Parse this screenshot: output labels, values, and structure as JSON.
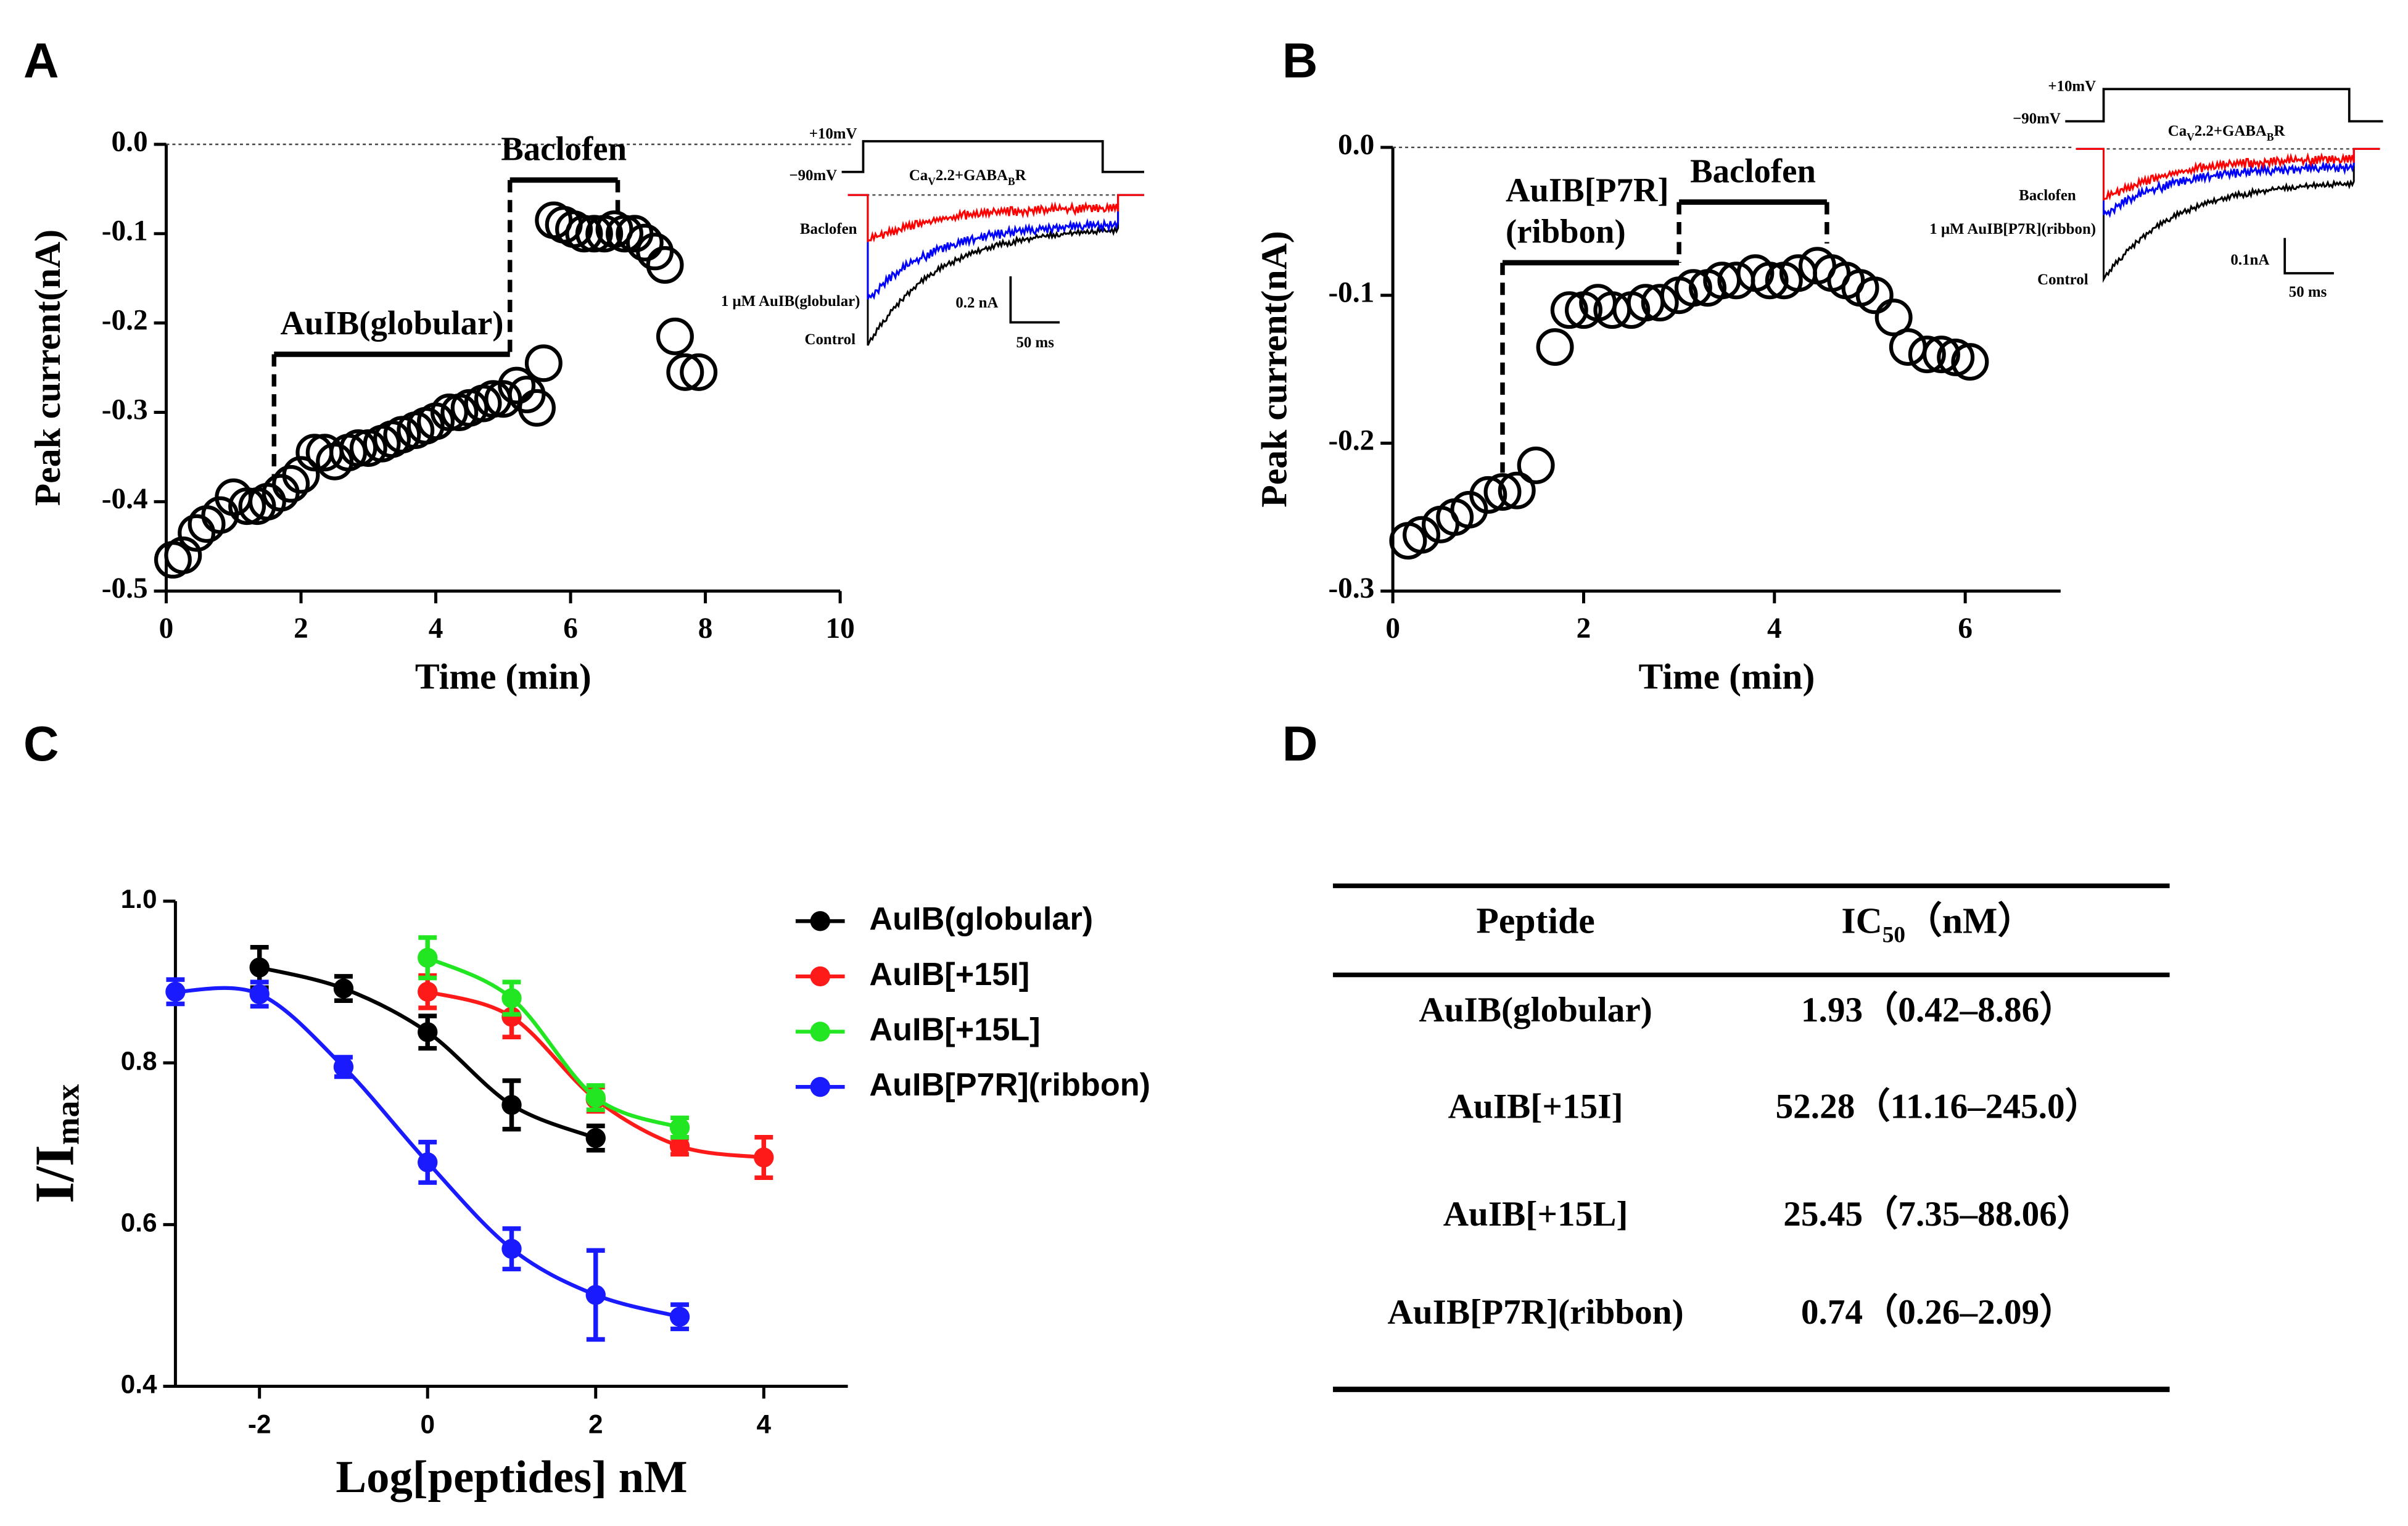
{
  "chart_data": [
    {
      "type": "scatter",
      "label": "A",
      "xlabel": "Time (min)",
      "ylabel": "Peak current(nA)",
      "color": "#000000",
      "x": [
        0.1,
        0.25,
        0.45,
        0.6,
        0.8,
        1.0,
        1.2,
        1.35,
        1.5,
        1.7,
        1.85,
        2.0,
        2.2,
        2.35,
        2.5,
        2.7,
        2.85,
        3.0,
        3.2,
        3.35,
        3.5,
        3.7,
        3.85,
        4.0,
        4.2,
        4.35,
        4.5,
        4.7,
        4.85,
        5.0,
        5.2,
        5.35,
        5.5,
        5.6,
        5.75,
        5.9,
        6.05,
        6.2,
        6.35,
        6.5,
        6.65,
        6.8,
        6.95,
        7.1,
        7.25,
        7.4,
        7.55,
        7.7,
        7.9
      ],
      "values": [
        -0.465,
        -0.46,
        -0.435,
        -0.425,
        -0.415,
        -0.395,
        -0.405,
        -0.405,
        -0.4,
        -0.39,
        -0.38,
        -0.37,
        -0.345,
        -0.345,
        -0.355,
        -0.345,
        -0.34,
        -0.34,
        -0.335,
        -0.33,
        -0.325,
        -0.32,
        -0.315,
        -0.31,
        -0.3,
        -0.3,
        -0.295,
        -0.29,
        -0.285,
        -0.285,
        -0.27,
        -0.28,
        -0.295,
        -0.245,
        -0.085,
        -0.09,
        -0.095,
        -0.1,
        -0.1,
        -0.1,
        -0.095,
        -0.1,
        -0.1,
        -0.11,
        -0.12,
        -0.135,
        -0.215,
        -0.255,
        -0.255
      ],
      "xlim": [
        0,
        10
      ],
      "xticks": [
        0,
        2,
        4,
        6,
        8,
        10
      ],
      "ylim": [
        -0.5,
        0
      ],
      "yticks": [
        {
          "value": 0,
          "label": "0.0"
        },
        -0.1,
        -0.2,
        -0.3,
        -0.4,
        -0.5
      ],
      "annotations": [
        {
          "text": [
            "AuIB(globular)"
          ],
          "x": [
            1.6,
            5.1
          ],
          "y": -0.235,
          "ticks_to": [
            -0.375,
            null
          ]
        },
        {
          "text": [
            "Baclofen"
          ],
          "x": [
            5.1,
            6.7
          ],
          "y": -0.04,
          "ticks_to": [
            -0.235,
            -0.075
          ]
        }
      ],
      "inset": {
        "step_high": "+10mV",
        "step_low": "−90mV",
        "condition": [
          "Ca",
          "V",
          "2.2+GABA",
          "B",
          "R"
        ],
        "trace_labels": [
          "Baclofen",
          "1 μM AuIB(globular)",
          "Control"
        ],
        "trace_colors": [
          "#ff0000",
          "#0000ff",
          "#000000"
        ],
        "scale_current": "0.2 nA",
        "scale_time": "50 ms"
      }
    },
    {
      "type": "scatter",
      "label": "B",
      "xlabel": "Time (min)",
      "ylabel": "Peak current(nA)",
      "color": "#000000",
      "x": [
        0.16,
        0.3,
        0.5,
        0.65,
        0.8,
        1.0,
        1.15,
        1.3,
        1.5,
        1.7,
        1.85,
        2.0,
        2.15,
        2.3,
        2.5,
        2.65,
        2.8,
        3.0,
        3.15,
        3.3,
        3.45,
        3.6,
        3.8,
        3.95,
        4.1,
        4.25,
        4.45,
        4.6,
        4.75,
        4.9,
        5.05,
        5.25,
        5.4,
        5.6,
        5.75,
        5.9,
        6.05
      ],
      "values": [
        -0.266,
        -0.262,
        -0.255,
        -0.25,
        -0.245,
        -0.235,
        -0.233,
        -0.232,
        -0.215,
        -0.135,
        -0.11,
        -0.11,
        -0.105,
        -0.11,
        -0.11,
        -0.105,
        -0.105,
        -0.1,
        -0.095,
        -0.095,
        -0.09,
        -0.09,
        -0.085,
        -0.09,
        -0.09,
        -0.085,
        -0.08,
        -0.085,
        -0.09,
        -0.095,
        -0.1,
        -0.115,
        -0.135,
        -0.14,
        -0.14,
        -0.142,
        -0.145
      ],
      "xlim": [
        0,
        7
      ],
      "xticks": [
        0,
        2,
        4,
        6
      ],
      "ylim": [
        -0.3,
        0
      ],
      "yticks": [
        {
          "value": 0,
          "label": "0.0"
        },
        -0.1,
        -0.2,
        -0.3
      ],
      "annotations": [
        {
          "text": [
            "AuIB[P7R]",
            "(ribbon)"
          ],
          "x": [
            1.15,
            3.0
          ],
          "y": -0.078,
          "ticks_to": [
            -0.22,
            null
          ]
        },
        {
          "text": [
            "Baclofen"
          ],
          "x": [
            3.0,
            4.55
          ],
          "y": -0.037,
          "ticks_to": [
            -0.078,
            -0.065
          ]
        }
      ],
      "inset": {
        "step_high": "+10mV",
        "step_low": "−90mV",
        "condition": [
          "Ca",
          "V",
          "2.2+GABA",
          "B",
          "R"
        ],
        "trace_labels": [
          "Baclofen",
          "1 μM AuIB[P7R](ribbon)",
          "Control"
        ],
        "trace_colors": [
          "#ff0000",
          "#0000ff",
          "#000000"
        ],
        "scale_current": "0.1nA",
        "scale_time": "50 ms"
      }
    },
    {
      "type": "line",
      "label": "C",
      "xlabel": "Log[peptides] nM",
      "ylabel": "I/I",
      "ylabel_sub": "max",
      "legend": "right",
      "xlim": [
        -3,
        5
      ],
      "xticks": [
        -2,
        0,
        2,
        4
      ],
      "ylim": [
        0.4,
        1.0
      ],
      "yticks": [
        {
          "value": 1.0,
          "label": "1.0"
        },
        0.8,
        0.6,
        0.4
      ],
      "series": [
        {
          "name": "AuIB(globular)",
          "color": "#000000",
          "x": [
            -2,
            -1,
            0,
            1,
            2
          ],
          "values": [
            0.918,
            0.892,
            0.838,
            0.748,
            0.707
          ],
          "errors": [
            0.025,
            0.015,
            0.02,
            0.03,
            0.015
          ]
        },
        {
          "name": "AuIB[+15I]",
          "color": "#ff1a1a",
          "x": [
            0,
            1,
            2,
            3,
            4
          ],
          "values": [
            0.888,
            0.857,
            0.755,
            0.697,
            0.683
          ],
          "errors": [
            0.02,
            0.025,
            0.015,
            0.01,
            0.025
          ]
        },
        {
          "name": "AuIB[+15L]",
          "color": "#22e622",
          "x": [
            0,
            1,
            2,
            3
          ],
          "values": [
            0.93,
            0.88,
            0.757,
            0.72
          ],
          "errors": [
            0.025,
            0.02,
            0.015,
            0.012
          ]
        },
        {
          "name": "AuIB[P7R](ribbon)",
          "color": "#1a1aff",
          "x": [
            -3,
            -2,
            -1,
            0,
            1,
            2,
            3
          ],
          "values": [
            0.888,
            0.885,
            0.795,
            0.677,
            0.57,
            0.513,
            0.486
          ],
          "errors": [
            0.015,
            0.015,
            0.012,
            0.025,
            0.025,
            0.055,
            0.015
          ]
        }
      ]
    }
  ],
  "table": {
    "label": "D",
    "columns": [
      {
        "text": "Peptide"
      },
      {
        "text": "IC",
        "sub": "50",
        "tail": "（nM）"
      }
    ],
    "rows": [
      [
        "AuIB(globular)",
        "1.93（0.42–8.86）"
      ],
      [
        "AuIB[+15I]",
        "52.28（11.16–245.0）"
      ],
      [
        "AuIB[+15L]",
        "25.45（7.35–88.06）"
      ],
      [
        "AuIB[P7R](ribbon)",
        "0.74（0.26–2.09）"
      ]
    ]
  }
}
